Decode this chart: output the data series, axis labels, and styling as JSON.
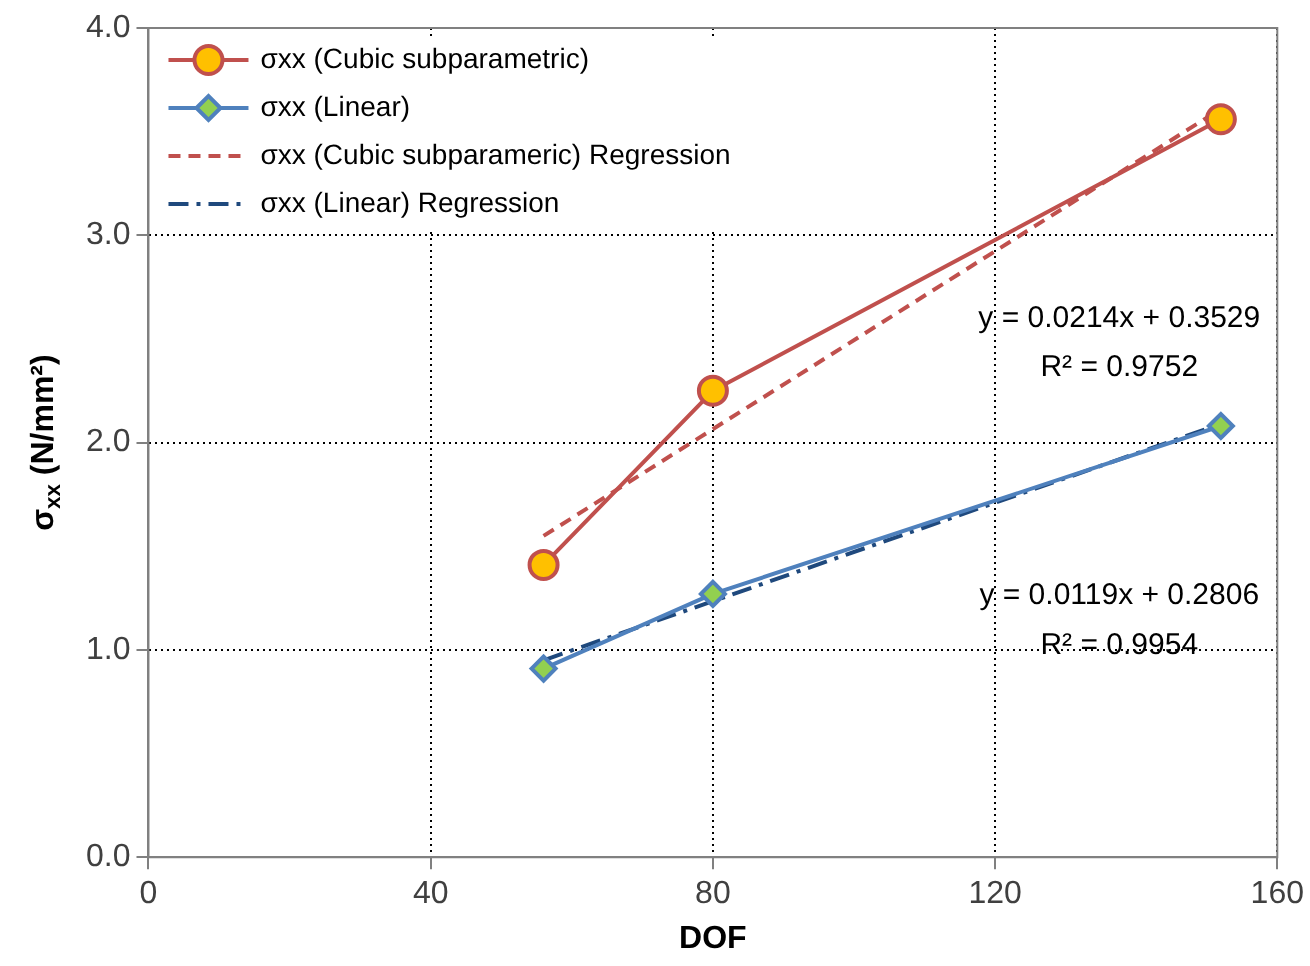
{
  "chart_data": {
    "type": "line",
    "xlabel": "DOF",
    "ylabel": "σ$_{xx}$ (N/mm²)",
    "xlim": [
      0,
      160
    ],
    "xticks": [
      0,
      40,
      80,
      120,
      160
    ],
    "ylim": [
      0,
      4
    ],
    "yticks": [
      {
        "value": 0,
        "label": "0.0"
      },
      {
        "value": 1,
        "label": "1.0"
      },
      {
        "value": 2,
        "label": "2.0"
      },
      {
        "value": 3,
        "label": "3.0"
      },
      {
        "value": 4,
        "label": "4.0"
      }
    ],
    "grid": true,
    "legend": "top left",
    "series": [
      {
        "name": "σxx (Cubic subparametric)",
        "color": "#c0504d",
        "colors": [
          "#ffc000",
          "#ffc000",
          "#ffc000"
        ],
        "marker": "circle",
        "line_style": "solid",
        "x": [
          56,
          80,
          152
        ],
        "values": [
          1.41,
          2.25,
          3.56
        ]
      },
      {
        "name": "σxx (Linear)",
        "color": "#4f81bd",
        "colors": [
          "#92d050",
          "#92d050",
          "#92d050"
        ],
        "marker": "diamond",
        "line_style": "solid",
        "x": [
          56,
          80,
          152
        ],
        "values": [
          0.91,
          1.27,
          2.08
        ]
      },
      {
        "name": "σxx (Cubic subparameric) Regression",
        "color": "#c0504d",
        "marker": "none",
        "line_style": "dashed",
        "x": [
          56,
          152
        ],
        "values": [
          1.55,
          3.61
        ]
      },
      {
        "name": "σxx (Linear) Regression",
        "color": "#1f497d",
        "marker": "none",
        "line_style": "dashdot",
        "x": [
          56,
          152
        ],
        "values": [
          0.95,
          2.09
        ]
      }
    ],
    "annotations": [
      "y = 0.0214x + 0.3529",
      "R² = 0.9752",
      "y = 0.0119x + 0.2806",
      "R² = 0.9954"
    ]
  }
}
